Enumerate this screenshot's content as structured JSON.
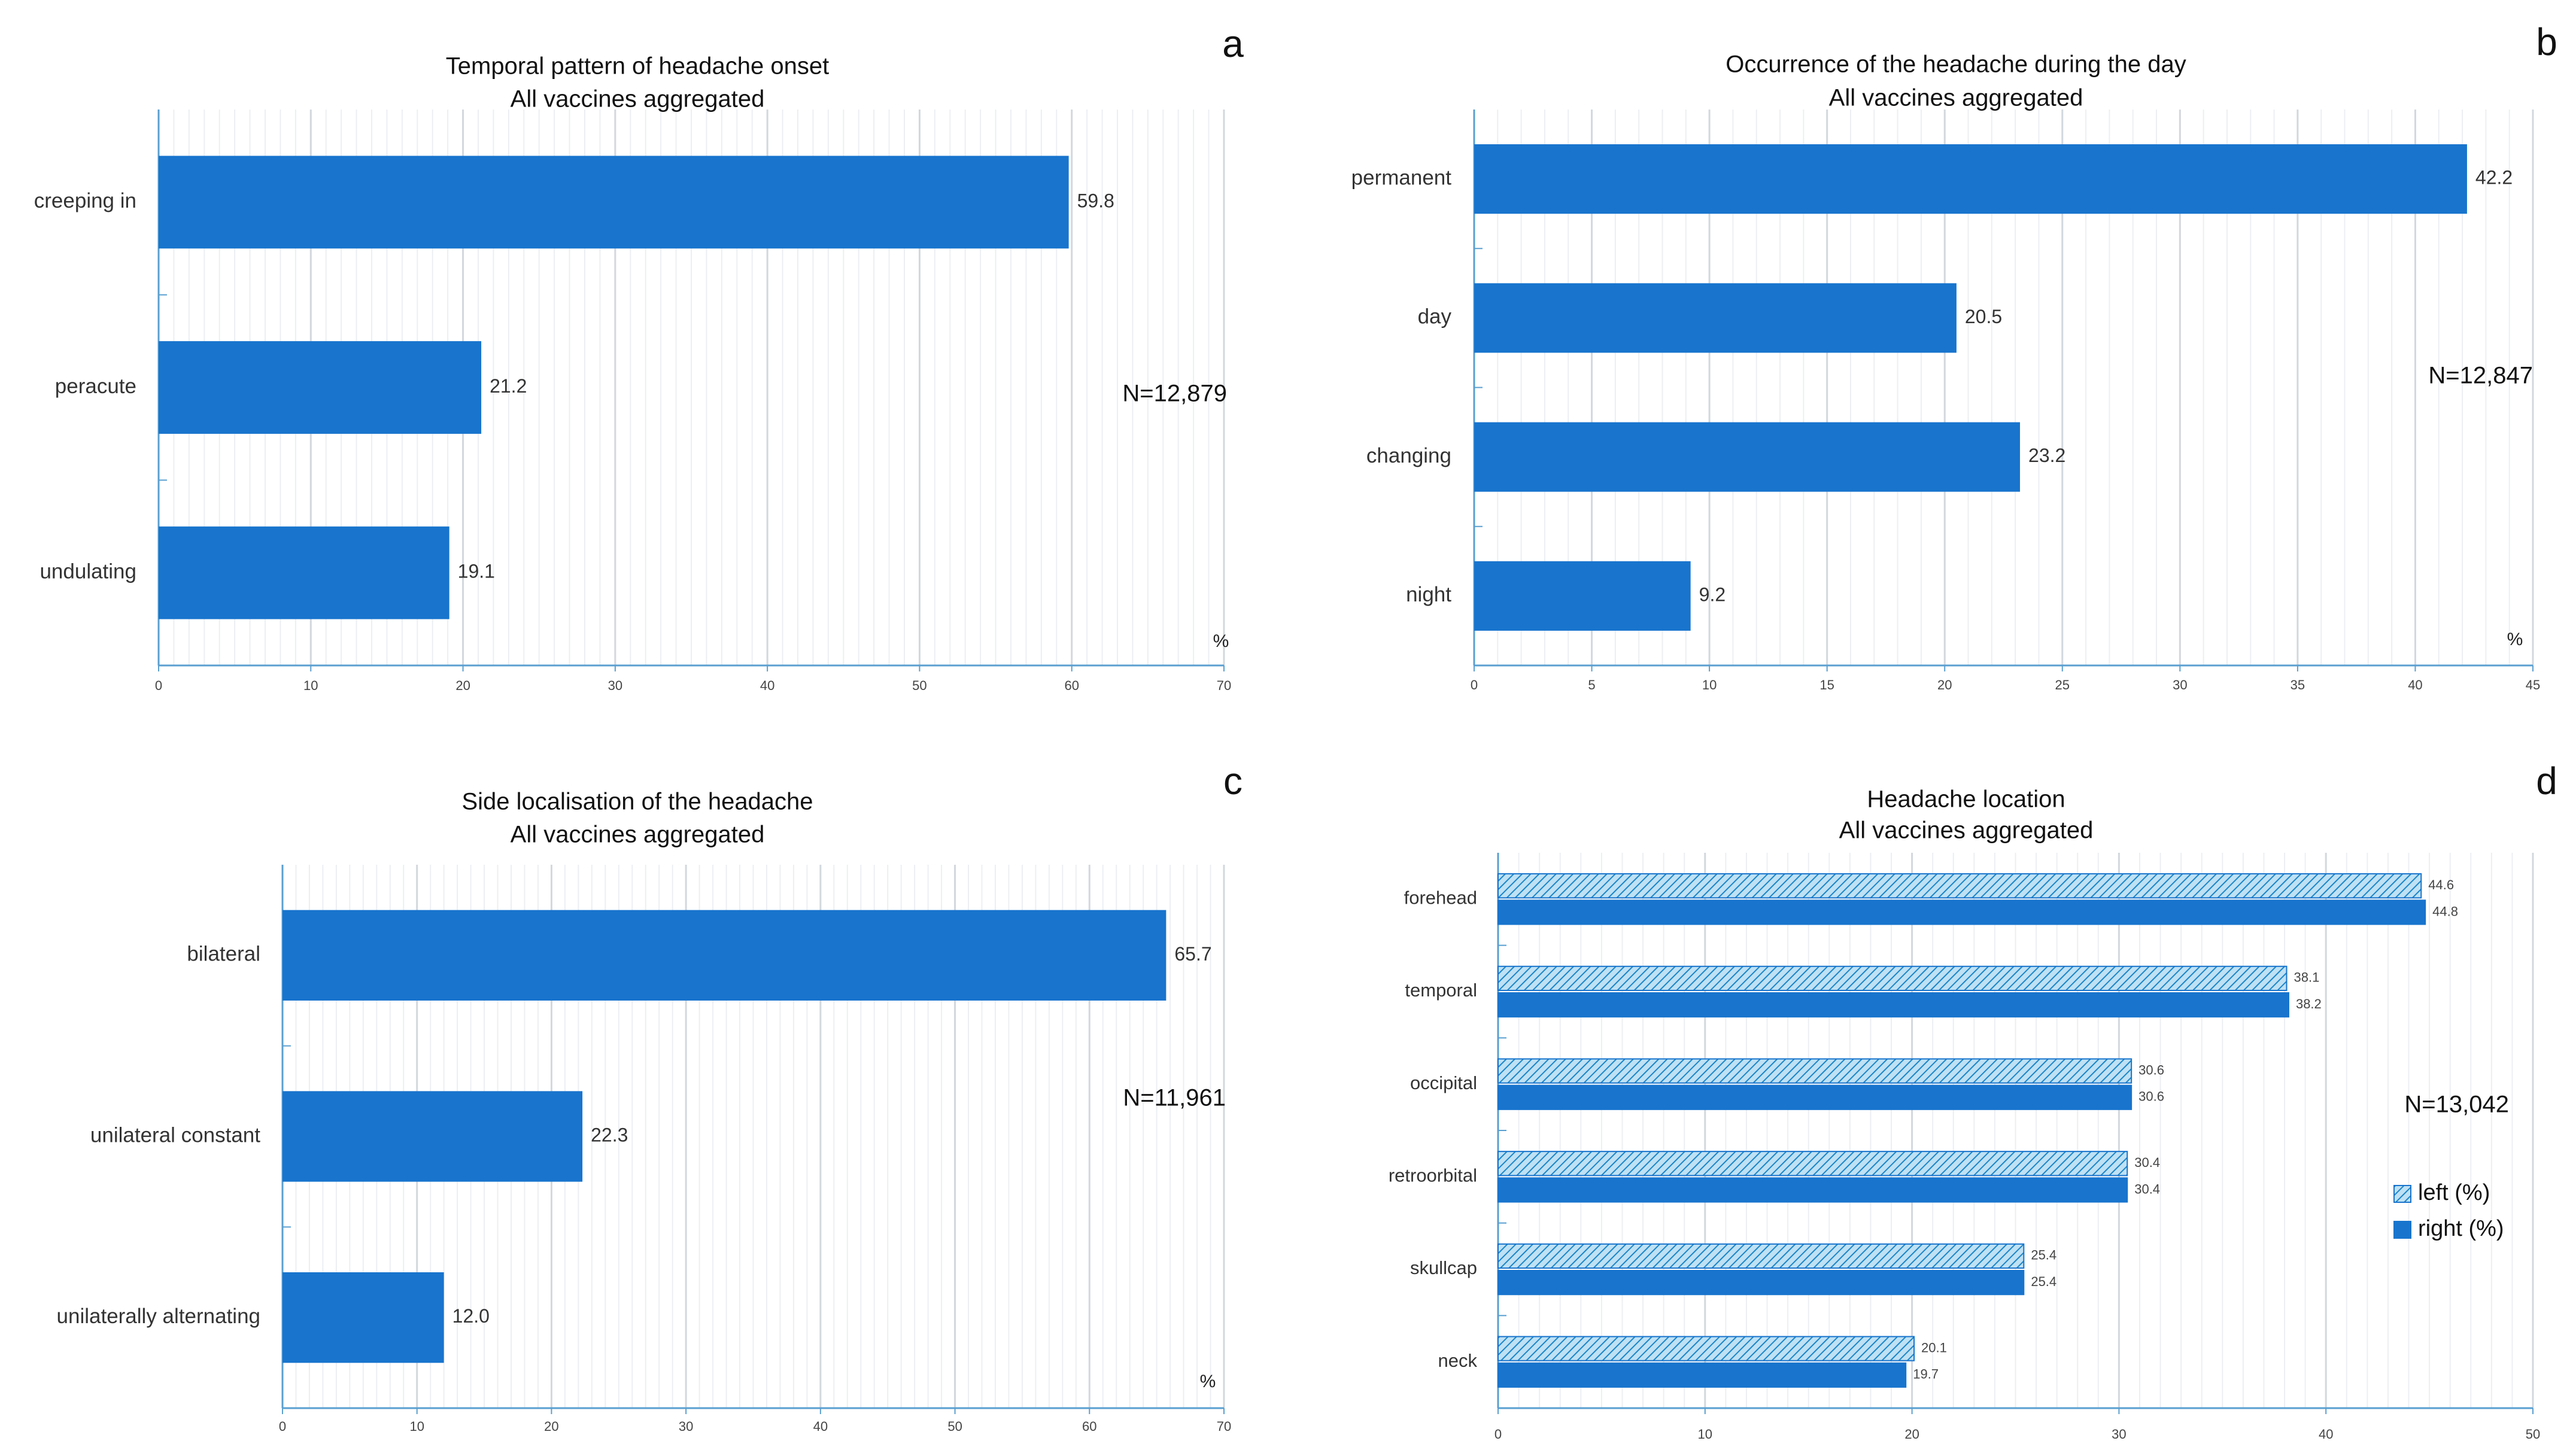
{
  "chart_data": [
    {
      "panel_letter": "a",
      "type": "bar",
      "orientation": "horizontal",
      "title": "Temporal pattern of headache onset",
      "subtitle": "All vaccines aggregated",
      "categories": [
        "creeping in",
        "peracute",
        "undulating"
      ],
      "values": [
        59.8,
        21.2,
        19.1
      ],
      "value_labels": [
        "59.8",
        "21.2",
        "19.1"
      ],
      "n_label": "N=12,879",
      "unit_label": "%",
      "xlim": [
        0,
        70
      ],
      "xticks": [
        0,
        10,
        20,
        30,
        40,
        50,
        60,
        70
      ],
      "xlabel": "",
      "ylabel": "",
      "grid": true,
      "color": "#1874cd"
    },
    {
      "panel_letter": "b",
      "type": "bar",
      "orientation": "horizontal",
      "title": "Occurrence of the headache during the day",
      "subtitle": "All vaccines aggregated",
      "categories": [
        "permanent",
        "day",
        "changing",
        "night"
      ],
      "values": [
        42.2,
        20.5,
        23.2,
        9.2
      ],
      "value_labels": [
        "42.2",
        "20.5",
        "23.2",
        "9.2"
      ],
      "n_label": "N=12,847",
      "unit_label": "%",
      "xlim": [
        0,
        45
      ],
      "xticks": [
        0,
        5,
        10,
        15,
        20,
        25,
        30,
        35,
        40,
        45
      ],
      "xlabel": "",
      "ylabel": "",
      "grid": true,
      "color": "#1874cd"
    },
    {
      "panel_letter": "c",
      "type": "bar",
      "orientation": "horizontal",
      "title": "Side localisation of the headache",
      "subtitle": "All vaccines aggregated",
      "categories": [
        "bilateral",
        "unilateral constant",
        "unilaterally alternating"
      ],
      "values": [
        65.7,
        22.3,
        12.0
      ],
      "value_labels": [
        "65.7",
        "22.3",
        "12.0"
      ],
      "n_label": "N=11,961",
      "unit_label": "%",
      "xlim": [
        0,
        70
      ],
      "xticks": [
        0,
        10,
        20,
        30,
        40,
        50,
        60,
        70
      ],
      "xlabel": "",
      "ylabel": "",
      "grid": true,
      "color": "#1874cd"
    },
    {
      "panel_letter": "d",
      "type": "bar",
      "orientation": "horizontal",
      "title": "Headache location",
      "subtitle": "All vaccines aggregated",
      "categories": [
        "forehead",
        "temporal",
        "occipital",
        "retroorbital",
        "skullcap",
        "neck"
      ],
      "series": [
        {
          "name": "left (%)",
          "values": [
            44.6,
            38.1,
            30.6,
            30.4,
            25.4,
            20.1
          ],
          "value_labels": [
            "44.6",
            "38.1",
            "30.6",
            "30.4",
            "25.4",
            "20.1"
          ],
          "color": "#a9d4ee",
          "pattern": "hatched"
        },
        {
          "name": "right (%)",
          "values": [
            44.8,
            38.2,
            30.6,
            30.4,
            25.4,
            19.7
          ],
          "value_labels": [
            "44.8",
            "38.2",
            "30.6",
            "30.4",
            "25.4",
            "19.7"
          ],
          "color": "#1874cd",
          "pattern": "solid"
        }
      ],
      "n_label": "N=13,042",
      "legend_position": "right",
      "xlim": [
        0,
        50
      ],
      "xticks": [
        0,
        10,
        20,
        30,
        40,
        50
      ],
      "xlabel": "",
      "ylabel": "",
      "grid": true
    }
  ]
}
